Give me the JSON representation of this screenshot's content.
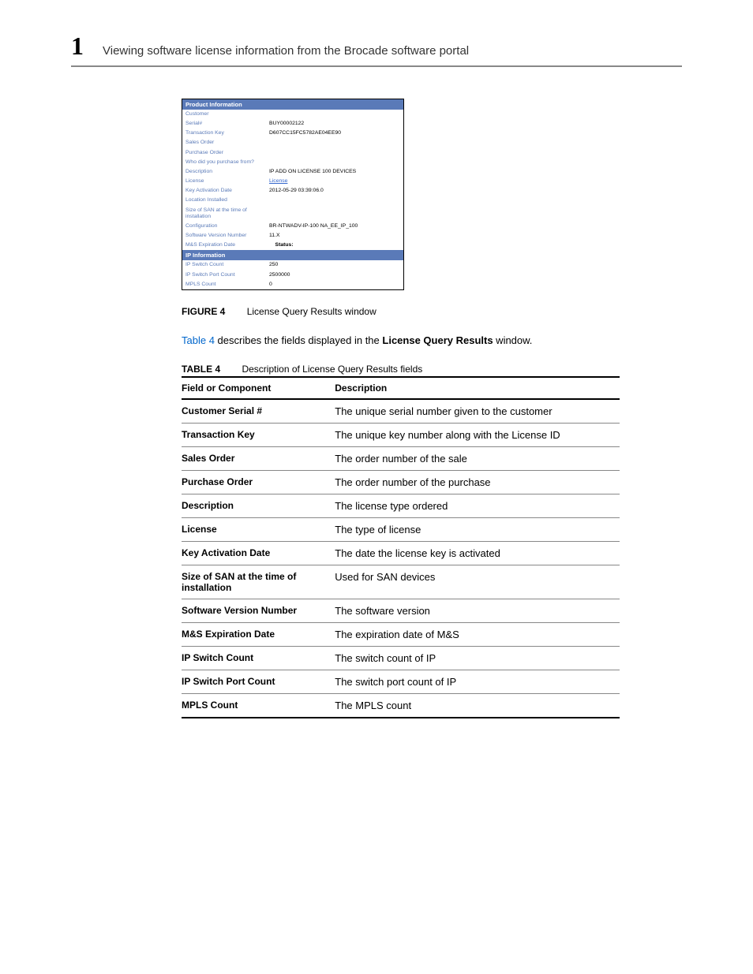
{
  "header": {
    "chapter": "1",
    "title": "Viewing software license information from the Brocade software portal"
  },
  "productInfo": {
    "sectionTitle": "Product Information",
    "rows": [
      {
        "label": "Customer",
        "value": ""
      },
      {
        "label": "Serial#",
        "value": "BUY00002122"
      },
      {
        "label": "Transaction Key",
        "value": "D607CC15FC5782AE04EE90"
      },
      {
        "label": "Sales Order",
        "value": ""
      },
      {
        "label": "Purchase Order",
        "value": ""
      },
      {
        "label": "Who did you purchase from?",
        "value": ""
      },
      {
        "label": "Description",
        "value": "IP ADD ON LICENSE 100 DEVICES"
      },
      {
        "label": "License",
        "value": "License",
        "valueType": "link"
      },
      {
        "label": "Key Activation Date",
        "value": "2012-05-29 03:39:06.0"
      },
      {
        "label": "Location Installed",
        "value": ""
      },
      {
        "label": "Size of SAN at the time of installation",
        "value": ""
      },
      {
        "label": "Configuration",
        "value": "BR-NTWADV-IP-100    NA_EE_IP_100"
      },
      {
        "label": "Software Version Number",
        "value": "11.X"
      },
      {
        "label": "M&S Expiration Date",
        "value": "",
        "status": "Status:"
      }
    ]
  },
  "ipInfo": {
    "sectionTitle": "IP Information",
    "rows": [
      {
        "label": "IP Switch Count",
        "value": "250"
      },
      {
        "label": "IP Switch Port Count",
        "value": "2500000"
      },
      {
        "label": "MPLS Count",
        "value": "0"
      }
    ]
  },
  "figure": {
    "label": "FIGURE 4",
    "caption": "License Query Results window"
  },
  "paragraph": {
    "ref": "Table 4",
    "mid": " describes the fields displayed in the ",
    "bold": "License Query Results",
    "end": " window."
  },
  "table4": {
    "label": "TABLE 4",
    "caption": "Description of License Query Results fields",
    "headers": {
      "field": "Field or Component",
      "desc": "Description"
    },
    "rows": [
      {
        "field": "Customer Serial #",
        "desc": "The unique serial number given to the customer"
      },
      {
        "field": "Transaction Key",
        "desc": "The unique key number along with the License ID"
      },
      {
        "field": "Sales Order",
        "desc": "The order number of the sale"
      },
      {
        "field": "Purchase Order",
        "desc": "The order number of the purchase"
      },
      {
        "field": "Description",
        "desc": "The license type ordered"
      },
      {
        "field": "License",
        "desc": "The type of license"
      },
      {
        "field": "Key Activation Date",
        "desc": "The date the license key is activated"
      },
      {
        "field": "Size of SAN at the time of installation",
        "desc": "Used for SAN devices"
      },
      {
        "field": "Software Version Number",
        "desc": "The software version"
      },
      {
        "field": "M&S Expiration Date",
        "desc": "The expiration date of M&S"
      },
      {
        "field": "IP Switch Count",
        "desc": "The switch count of IP"
      },
      {
        "field": "IP Switch Port Count",
        "desc": "The switch port count of IP"
      },
      {
        "field": "MPLS Count",
        "desc": "The MPLS count"
      }
    ]
  }
}
